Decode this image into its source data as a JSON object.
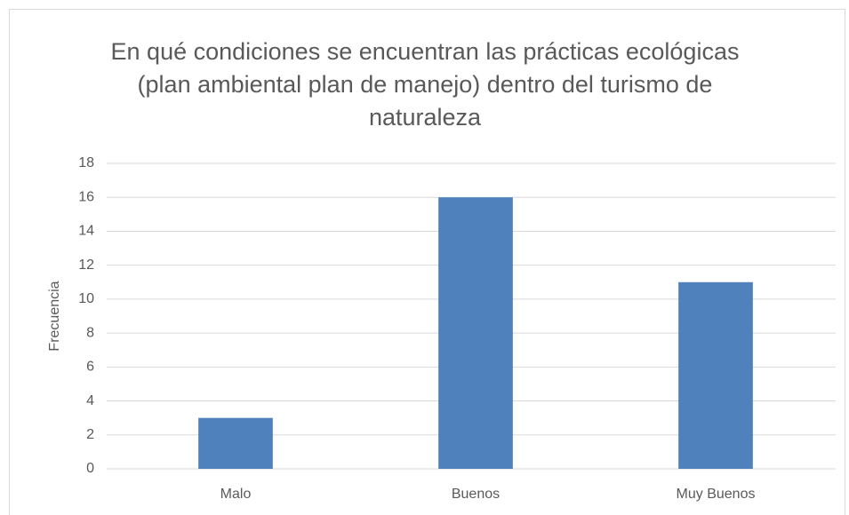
{
  "chart_data": {
    "type": "bar",
    "title": "En qué condiciones se encuentran las prácticas ecológicas (plan ambiental plan de manejo) dentro del turismo de naturaleza",
    "ylabel": "Frecuencia",
    "categories": [
      "Malo",
      "Buenos",
      "Muy Buenos"
    ],
    "values": [
      3,
      16,
      11
    ],
    "color": "#4f81bd",
    "ylim": [
      0,
      18
    ],
    "yticks": [
      0,
      2,
      4,
      6,
      8,
      10,
      12,
      14,
      16,
      18
    ],
    "grid": true
  }
}
